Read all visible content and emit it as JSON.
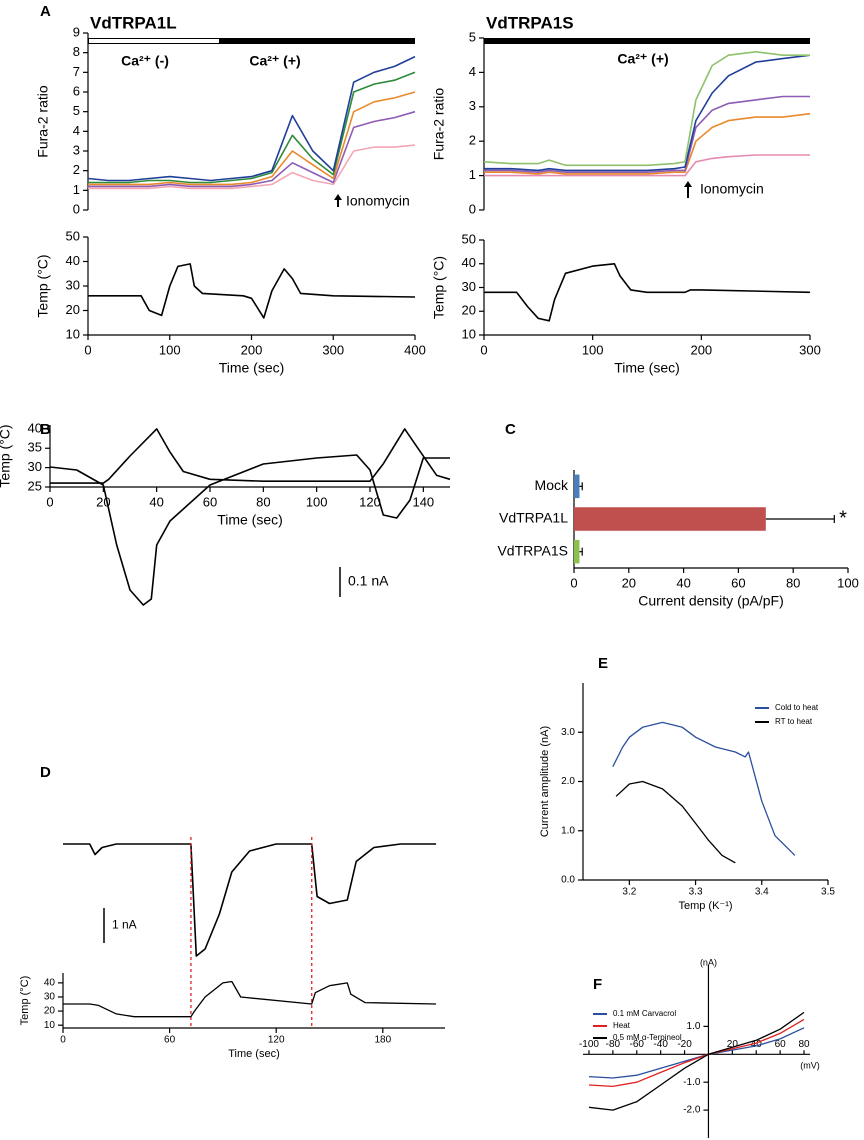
{
  "panel_letters": [
    "A",
    "B",
    "C",
    "D",
    "E",
    "F"
  ],
  "chart_data": [
    {
      "type": "line",
      "title": "VdTRPA1L",
      "ylabel": "Fura-2 ratio",
      "annotations": [
        "Ca²⁺ (-)",
        "Ca²⁺ (+)",
        "Ionomycin"
      ],
      "x": [
        0,
        25,
        50,
        75,
        100,
        125,
        150,
        175,
        200,
        225,
        250,
        275,
        300,
        325,
        350,
        375,
        400
      ],
      "xlim": [
        0,
        400
      ],
      "ylim": [
        0,
        9
      ],
      "yticks": [
        0,
        1,
        2,
        3,
        4,
        5,
        6,
        7,
        8,
        9
      ],
      "series": [
        {
          "color": "#f4a6b5",
          "values": [
            1.1,
            1.1,
            1.1,
            1.1,
            1.2,
            1.1,
            1.1,
            1.1,
            1.2,
            1.3,
            1.9,
            1.5,
            1.3,
            3.0,
            3.2,
            3.2,
            3.3
          ]
        },
        {
          "color": "#8e5bb5",
          "values": [
            1.2,
            1.2,
            1.2,
            1.2,
            1.3,
            1.2,
            1.2,
            1.2,
            1.3,
            1.5,
            2.4,
            1.9,
            1.4,
            4.2,
            4.5,
            4.7,
            5.0
          ]
        },
        {
          "color": "#e8892b",
          "values": [
            1.3,
            1.3,
            1.3,
            1.3,
            1.4,
            1.3,
            1.3,
            1.3,
            1.4,
            1.7,
            3.0,
            2.3,
            1.6,
            5.0,
            5.5,
            5.7,
            6.0
          ]
        },
        {
          "color": "#2e8b3a",
          "values": [
            1.4,
            1.4,
            1.4,
            1.5,
            1.5,
            1.4,
            1.4,
            1.5,
            1.6,
            1.9,
            3.8,
            2.6,
            1.8,
            6.0,
            6.4,
            6.6,
            7.0
          ]
        },
        {
          "color": "#1f3f99",
          "values": [
            1.6,
            1.5,
            1.5,
            1.6,
            1.7,
            1.6,
            1.5,
            1.6,
            1.7,
            2.0,
            4.8,
            3.0,
            2.0,
            6.5,
            7.0,
            7.3,
            7.8
          ]
        }
      ]
    },
    {
      "type": "line",
      "ylabel": "Temp (°C)",
      "xlabel": "Time (sec)",
      "x": [
        0,
        65,
        75,
        90,
        100,
        110,
        125,
        130,
        140,
        190,
        200,
        215,
        225,
        240,
        250,
        260,
        300,
        400
      ],
      "xlim": [
        0,
        400
      ],
      "xticks": [
        0,
        100,
        200,
        300,
        400
      ],
      "ylim": [
        10,
        50
      ],
      "yticks": [
        10,
        20,
        30,
        40,
        50
      ],
      "series": [
        {
          "color": "#000000",
          "values": [
            26,
            26,
            20,
            18,
            30,
            38,
            39,
            30,
            27,
            26,
            25,
            17,
            28,
            37,
            33,
            27,
            26,
            25.5
          ]
        }
      ]
    },
    {
      "type": "line",
      "title": "VdTRPA1S",
      "ylabel": "Fura-2 ratio",
      "annotations": [
        "Ca²⁺ (+)",
        "Ionomycin"
      ],
      "x": [
        0,
        25,
        50,
        60,
        75,
        100,
        125,
        150,
        175,
        185,
        195,
        210,
        225,
        250,
        275,
        300
      ],
      "xlim": [
        0,
        300
      ],
      "ylim": [
        0,
        5
      ],
      "yticks": [
        0,
        1,
        2,
        3,
        4,
        5
      ],
      "series": [
        {
          "color": "#e58ab0",
          "values": [
            1.0,
            1.0,
            1.0,
            1.0,
            1.0,
            1.0,
            1.0,
            1.0,
            1.0,
            1.0,
            1.4,
            1.5,
            1.55,
            1.6,
            1.6,
            1.6
          ]
        },
        {
          "color": "#e8892b",
          "values": [
            1.1,
            1.1,
            1.05,
            1.1,
            1.05,
            1.05,
            1.05,
            1.05,
            1.1,
            1.1,
            2.0,
            2.4,
            2.6,
            2.7,
            2.7,
            2.8
          ]
        },
        {
          "color": "#8e5bb5",
          "values": [
            1.15,
            1.15,
            1.1,
            1.15,
            1.1,
            1.1,
            1.1,
            1.1,
            1.15,
            1.15,
            2.4,
            2.9,
            3.1,
            3.2,
            3.3,
            3.3
          ]
        },
        {
          "color": "#1f3f99",
          "values": [
            1.2,
            1.2,
            1.15,
            1.2,
            1.15,
            1.15,
            1.15,
            1.15,
            1.2,
            1.25,
            2.6,
            3.4,
            3.9,
            4.3,
            4.4,
            4.5
          ]
        },
        {
          "color": "#8dc26a",
          "values": [
            1.4,
            1.35,
            1.35,
            1.45,
            1.3,
            1.3,
            1.3,
            1.3,
            1.35,
            1.4,
            3.2,
            4.2,
            4.5,
            4.6,
            4.5,
            4.5
          ]
        }
      ]
    },
    {
      "type": "line",
      "ylabel": "Temp (°C)",
      "xlabel": "Time (sec)",
      "x": [
        0,
        30,
        40,
        50,
        60,
        65,
        75,
        100,
        120,
        125,
        135,
        150,
        185,
        190,
        200,
        300
      ],
      "xlim": [
        0,
        300
      ],
      "xticks": [
        0,
        100,
        200,
        300
      ],
      "ylim": [
        10,
        50
      ],
      "yticks": [
        10,
        20,
        30,
        40,
        50
      ],
      "series": [
        {
          "color": "#000000",
          "values": [
            28,
            28,
            22,
            17,
            16,
            25,
            36,
            39,
            40,
            35,
            29,
            28,
            28,
            29,
            29,
            28
          ]
        }
      ]
    },
    {
      "type": "line",
      "scale_bar": {
        "value": 0.1,
        "label": "0.1 nA"
      },
      "x": [
        0,
        10,
        20,
        25,
        30,
        35,
        38,
        40,
        45,
        60,
        80,
        100,
        115,
        120,
        125,
        130,
        135,
        140,
        150
      ],
      "xlim": [
        0,
        150
      ],
      "ylim": [
        -0.55,
        0.05
      ],
      "series": [
        {
          "color": "#000000",
          "values": [
            -0.04,
            -0.05,
            -0.1,
            -0.3,
            -0.45,
            -0.5,
            -0.48,
            -0.3,
            -0.22,
            -0.1,
            -0.03,
            -0.01,
            0,
            -0.05,
            -0.2,
            -0.21,
            -0.15,
            -0.01,
            -0.01
          ]
        }
      ]
    },
    {
      "type": "line",
      "ylabel": "Temp (°C)",
      "xlabel": "Time (sec)",
      "x": [
        0,
        20,
        22,
        30,
        40,
        45,
        50,
        60,
        80,
        120,
        125,
        133,
        137,
        145,
        150
      ],
      "xlim": [
        0,
        150
      ],
      "xticks": [
        0,
        20,
        40,
        60,
        80,
        100,
        120,
        140
      ],
      "ylim": [
        25,
        41
      ],
      "yticks": [
        25,
        30,
        35,
        40
      ],
      "series": [
        {
          "color": "#000000",
          "values": [
            26,
            26,
            27,
            33,
            40,
            34,
            29,
            27,
            26.5,
            26.5,
            31,
            40,
            36,
            28,
            27
          ]
        }
      ]
    },
    {
      "type": "hbar",
      "xlabel": "Current density (pA/pF)",
      "annotations": [
        "*"
      ],
      "categories": [
        "Mock",
        "VdTRPA1L",
        "VdTRPA1S"
      ],
      "values": [
        2,
        70,
        2
      ],
      "errors": [
        1,
        25,
        1
      ],
      "colors": [
        "#4a7ebb",
        "#c0504d",
        "#8dc04f"
      ],
      "xlim": [
        0,
        100
      ],
      "xticks": [
        0,
        20,
        40,
        60,
        80,
        100
      ]
    },
    {
      "type": "line",
      "scale_bar": {
        "value": 1,
        "label": "1 nA"
      },
      "x": [
        0,
        15,
        18,
        22,
        30,
        50,
        72,
        75,
        80,
        88,
        95,
        105,
        120,
        140,
        143,
        150,
        160,
        165,
        175,
        190,
        210
      ],
      "xlim": [
        0,
        215
      ],
      "ylim": [
        -3.6,
        0.4
      ],
      "series": [
        {
          "color": "#000000",
          "values": [
            0,
            0,
            -0.3,
            -0.1,
            0,
            0,
            0,
            -3.2,
            -3.0,
            -2.0,
            -0.8,
            -0.2,
            0,
            0,
            -1.5,
            -1.7,
            -1.6,
            -0.5,
            -0.1,
            0,
            0
          ]
        }
      ]
    },
    {
      "type": "line",
      "ylabel": "Temp (°C)",
      "xlabel": "Time (sec)",
      "vlines": [
        72,
        140
      ],
      "x": [
        0,
        15,
        20,
        30,
        40,
        72,
        74,
        80,
        90,
        95,
        100,
        140,
        142,
        150,
        160,
        162,
        170,
        210
      ],
      "xlim": [
        0,
        215
      ],
      "xticks": [
        0,
        60,
        120,
        180
      ],
      "ylim": [
        8,
        47
      ],
      "yticks": [
        10,
        20,
        30,
        40
      ],
      "series": [
        {
          "color": "#000000",
          "values": [
            25,
            25,
            24,
            18,
            16,
            16,
            20,
            30,
            40,
            41,
            30,
            25,
            33,
            38,
            40,
            32,
            26,
            25
          ]
        }
      ]
    },
    {
      "type": "line",
      "xlabel": "Temp (K⁻¹)",
      "ylabel": "Current amplitude (nA)",
      "legend": "upper right",
      "xlim": [
        3.13,
        3.5
      ],
      "xticks": [
        3.2,
        3.3,
        3.4,
        3.5
      ],
      "ylim": [
        0,
        4
      ],
      "yticks": [
        {
          "value": 0,
          "label": "0.0"
        },
        {
          "value": 1,
          "label": "1.0"
        },
        {
          "value": 2,
          "label": "2.0"
        },
        {
          "value": 3,
          "label": "3.0"
        }
      ],
      "series": [
        {
          "name": "Cold to heat",
          "color": "#2a4f9e",
          "x": [
            3.175,
            3.19,
            3.2,
            3.22,
            3.25,
            3.28,
            3.3,
            3.33,
            3.36,
            3.375,
            3.38,
            3.4,
            3.42,
            3.45
          ],
          "values": [
            2.3,
            2.7,
            2.9,
            3.1,
            3.2,
            3.1,
            2.9,
            2.7,
            2.6,
            2.5,
            2.6,
            1.6,
            0.9,
            0.5
          ]
        },
        {
          "name": "RT to heat",
          "color": "#000000",
          "x": [
            3.18,
            3.2,
            3.22,
            3.25,
            3.28,
            3.3,
            3.32,
            3.34,
            3.36
          ],
          "values": [
            1.7,
            1.95,
            2.0,
            1.85,
            1.5,
            1.15,
            0.8,
            0.5,
            0.35
          ]
        }
      ]
    },
    {
      "type": "line",
      "xlabel": "(mV)",
      "ylabel": "(nA)",
      "legend": "upper left",
      "x": [
        -100,
        -80,
        -60,
        -40,
        -20,
        0,
        20,
        40,
        60,
        80
      ],
      "xlim": [
        -105,
        85
      ],
      "xticks": [
        -100,
        -80,
        -60,
        -40,
        -20,
        20,
        40,
        60,
        80
      ],
      "ylim": [
        -3,
        3.2
      ],
      "yticks": [
        {
          "value": -2,
          "label": "-2.0"
        },
        {
          "value": -1,
          "label": "-1.0"
        },
        {
          "value": 1,
          "label": "1.0"
        }
      ],
      "series": [
        {
          "name": "0.1 mM Carvacrol",
          "color": "#2a4f9e",
          "values": [
            -0.8,
            -0.85,
            -0.75,
            -0.5,
            -0.25,
            0,
            0.15,
            0.3,
            0.55,
            0.95
          ]
        },
        {
          "name": "Heat",
          "color": "#e02020",
          "values": [
            -1.1,
            -1.15,
            -1.0,
            -0.65,
            -0.3,
            0,
            0.2,
            0.4,
            0.75,
            1.25
          ]
        },
        {
          "name": "0.5 mM α-Terpineol",
          "color": "#000000",
          "values": [
            -1.9,
            -2.0,
            -1.7,
            -1.1,
            -0.5,
            0,
            0.25,
            0.5,
            0.9,
            1.5
          ]
        }
      ]
    }
  ]
}
